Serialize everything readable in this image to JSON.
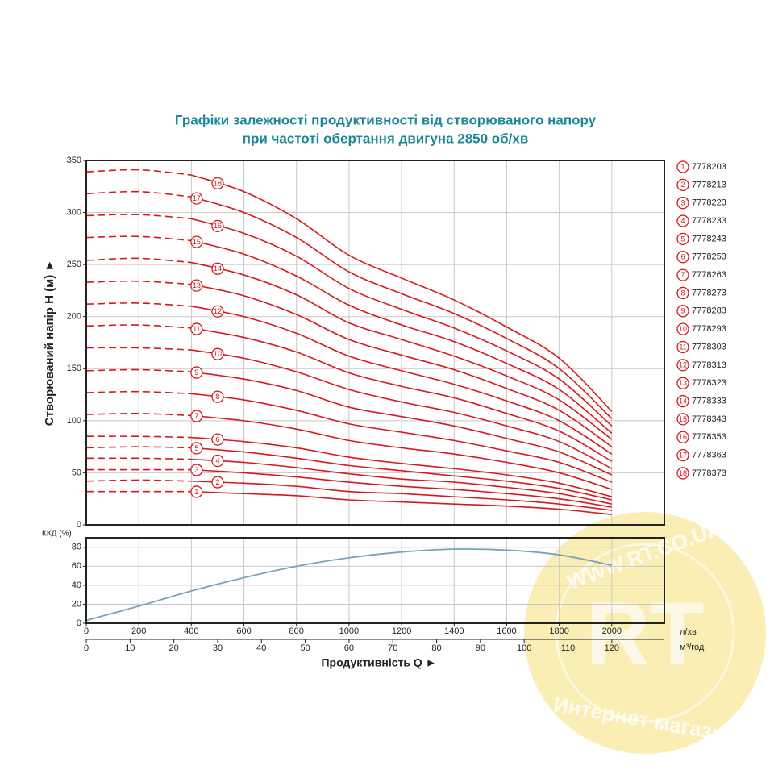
{
  "chart_data": [
    {
      "type": "line",
      "title": [
        "Графіки залежності продуктивності від створюваного напору",
        "при частоті обертання двигуна 2850 об/хв"
      ],
      "ylabel": "Створюваний напір H (м) ►",
      "x": [
        0,
        200,
        400,
        600,
        800,
        1000,
        1200,
        1400,
        1600,
        1800,
        2000
      ],
      "xlim": [
        0,
        2200
      ],
      "xticks": [
        0,
        200,
        400,
        600,
        800,
        1000,
        1200,
        1400,
        1600,
        1800,
        2000
      ],
      "ylim": [
        0,
        350
      ],
      "yticks": [
        0,
        50,
        100,
        150,
        200,
        250,
        300,
        350
      ],
      "grid": true,
      "series": [
        {
          "label": "1",
          "name": "7778203",
          "color": "#d7191f",
          "values": [
            32,
            32,
            32,
            30,
            28,
            24,
            22,
            20,
            18,
            15,
            10
          ]
        },
        {
          "label": "2",
          "name": "7778213",
          "color": "#d7191f",
          "values": [
            42,
            43,
            42,
            40,
            37,
            32,
            30,
            27,
            24,
            20,
            14
          ]
        },
        {
          "label": "3",
          "name": "7778223",
          "color": "#d7191f",
          "values": [
            53,
            53,
            53,
            50,
            46,
            41,
            37,
            34,
            30,
            25,
            17
          ]
        },
        {
          "label": "4",
          "name": "7778233",
          "color": "#d7191f",
          "values": [
            64,
            64,
            63,
            60,
            55,
            49,
            44,
            41,
            36,
            30,
            20
          ]
        },
        {
          "label": "5",
          "name": "7778243",
          "color": "#d7191f",
          "values": [
            74,
            75,
            74,
            70,
            64,
            57,
            52,
            47,
            42,
            35,
            24
          ]
        },
        {
          "label": "6",
          "name": "7778253",
          "color": "#d7191f",
          "values": [
            85,
            85,
            84,
            80,
            74,
            65,
            59,
            54,
            48,
            40,
            27
          ]
        },
        {
          "label": "7",
          "name": "7778263",
          "color": "#d7191f",
          "values": [
            106,
            107,
            105,
            100,
            92,
            81,
            74,
            68,
            60,
            50,
            34
          ]
        },
        {
          "label": "8",
          "name": "7778273",
          "color": "#d7191f",
          "values": [
            127,
            128,
            126,
            120,
            110,
            97,
            89,
            81,
            71,
            60,
            41
          ]
        },
        {
          "label": "9",
          "name": "7778283",
          "color": "#d7191f",
          "values": [
            148,
            149,
            147,
            140,
            129,
            113,
            104,
            95,
            83,
            70,
            48
          ]
        },
        {
          "label": "10",
          "name": "7778293",
          "color": "#d7191f",
          "values": [
            170,
            170,
            168,
            160,
            147,
            130,
            118,
            108,
            95,
            80,
            54
          ]
        },
        {
          "label": "11",
          "name": "7778303",
          "color": "#d7191f",
          "values": [
            191,
            192,
            189,
            180,
            166,
            146,
            133,
            122,
            107,
            90,
            61
          ]
        },
        {
          "label": "12",
          "name": "7778313",
          "color": "#d7191f",
          "values": [
            212,
            213,
            210,
            200,
            184,
            162,
            148,
            135,
            119,
            100,
            68
          ]
        },
        {
          "label": "13",
          "name": "7778323",
          "color": "#d7191f",
          "values": [
            233,
            234,
            231,
            220,
            202,
            178,
            163,
            149,
            131,
            110,
            75
          ]
        },
        {
          "label": "14",
          "name": "7778333",
          "color": "#d7191f",
          "values": [
            254,
            256,
            252,
            240,
            221,
            194,
            178,
            162,
            143,
            120,
            82
          ]
        },
        {
          "label": "15",
          "name": "7778343",
          "color": "#d7191f",
          "values": [
            276,
            277,
            273,
            260,
            239,
            211,
            192,
            176,
            155,
            130,
            88
          ]
        },
        {
          "label": "16",
          "name": "7778353",
          "color": "#d7191f",
          "values": [
            297,
            298,
            294,
            280,
            258,
            227,
            207,
            189,
            167,
            140,
            95
          ]
        },
        {
          "label": "17",
          "name": "7778363",
          "color": "#d7191f",
          "values": [
            318,
            320,
            315,
            300,
            276,
            243,
            222,
            203,
            179,
            150,
            102
          ]
        },
        {
          "label": "18",
          "name": "7778373",
          "color": "#d7191f",
          "values": [
            339,
            341,
            336,
            320,
            294,
            259,
            237,
            216,
            190,
            160,
            109
          ]
        }
      ]
    },
    {
      "type": "line",
      "ylabel": "ККД (%)",
      "x": [
        0,
        200,
        400,
        600,
        800,
        1000,
        1200,
        1400,
        1600,
        1800,
        2000
      ],
      "values": [
        3,
        18,
        34,
        48,
        60,
        69,
        75,
        78,
        77,
        72,
        61
      ],
      "color": "#7aa3b8",
      "xlim": [
        0,
        2200
      ],
      "xticks": [
        0,
        200,
        400,
        600,
        800,
        1000,
        1200,
        1400,
        1600,
        1800,
        2000
      ],
      "x_unit": "л/хв",
      "x2lim": [
        0,
        132
      ],
      "x2ticks": [
        0,
        10,
        20,
        30,
        40,
        50,
        60,
        70,
        80,
        90,
        100,
        110,
        120
      ],
      "x2_unit": "м³/год",
      "x_title": "Продуктивність  Q ►",
      "ylim": [
        0,
        90
      ],
      "yticks": [
        0,
        20,
        40,
        60,
        80
      ],
      "grid": true
    }
  ],
  "watermark": {
    "url": "WWW.RT.CO.UA",
    "logo": "RT",
    "caption": "Интернет магазин"
  }
}
